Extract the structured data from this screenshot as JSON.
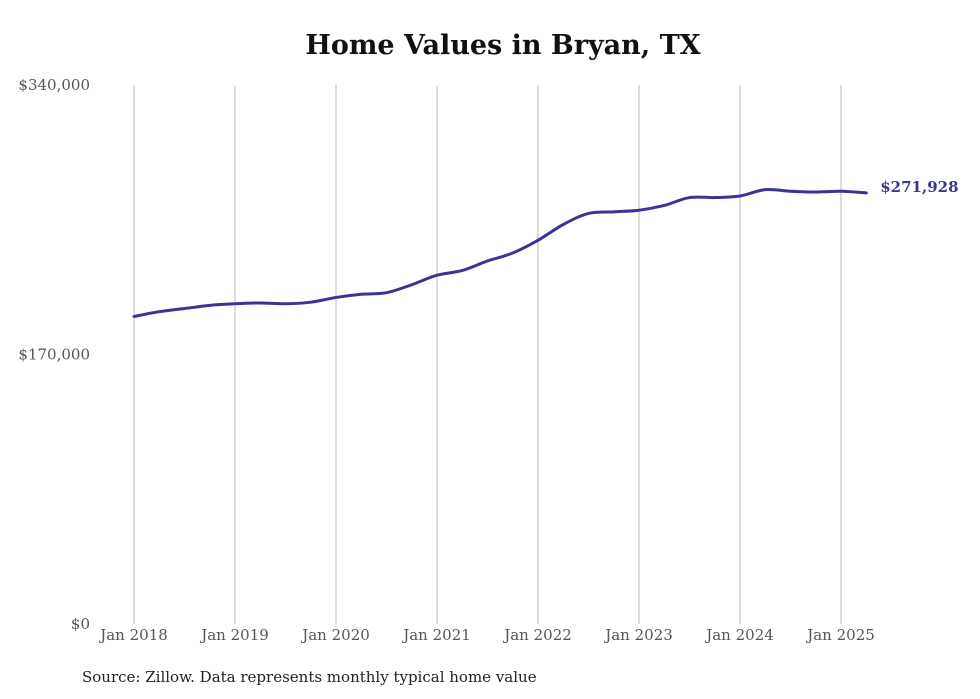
{
  "chart_data": {
    "type": "line",
    "title": "Home Values in Bryan, TX",
    "source": "Source: Zillow. Data represents monthly typical home value",
    "xlabel": "",
    "ylabel": "",
    "ylim": [
      0,
      340000
    ],
    "y_ticks": [
      {
        "value": 0,
        "label": "$0"
      },
      {
        "value": 170000,
        "label": "$170,000"
      },
      {
        "value": 340000,
        "label": "$340,000"
      }
    ],
    "x_ticks": [
      {
        "value": "2018-01",
        "label": "Jan 2018"
      },
      {
        "value": "2019-01",
        "label": "Jan 2019"
      },
      {
        "value": "2020-01",
        "label": "Jan 2020"
      },
      {
        "value": "2021-01",
        "label": "Jan 2021"
      },
      {
        "value": "2022-01",
        "label": "Jan 2022"
      },
      {
        "value": "2023-01",
        "label": "Jan 2023"
      },
      {
        "value": "2024-01",
        "label": "Jan 2024"
      },
      {
        "value": "2025-01",
        "label": "Jan 2025"
      }
    ],
    "grid": "vertical",
    "line_color": "#3a3593",
    "grid_color": "#bbbbbb",
    "end_label": "$271,928",
    "series": [
      {
        "x": [
          "2018-01",
          "2018-04",
          "2018-07",
          "2018-10",
          "2019-01",
          "2019-04",
          "2019-07",
          "2019-10",
          "2020-01",
          "2020-04",
          "2020-07",
          "2020-10",
          "2021-01",
          "2021-04",
          "2021-07",
          "2021-10",
          "2022-01",
          "2022-04",
          "2022-07",
          "2022-10",
          "2023-01",
          "2023-04",
          "2023-07",
          "2023-10",
          "2024-01",
          "2024-04",
          "2024-07",
          "2024-10",
          "2025-01",
          "2025-04"
        ],
        "values": [
          194000,
          197000,
          199000,
          201000,
          202000,
          202500,
          202000,
          203000,
          206000,
          208000,
          209000,
          214000,
          220000,
          223000,
          229000,
          234000,
          242000,
          252000,
          259000,
          260000,
          261000,
          264000,
          269000,
          269000,
          270000,
          274000,
          273000,
          272500,
          273000,
          271928
        ]
      }
    ]
  }
}
